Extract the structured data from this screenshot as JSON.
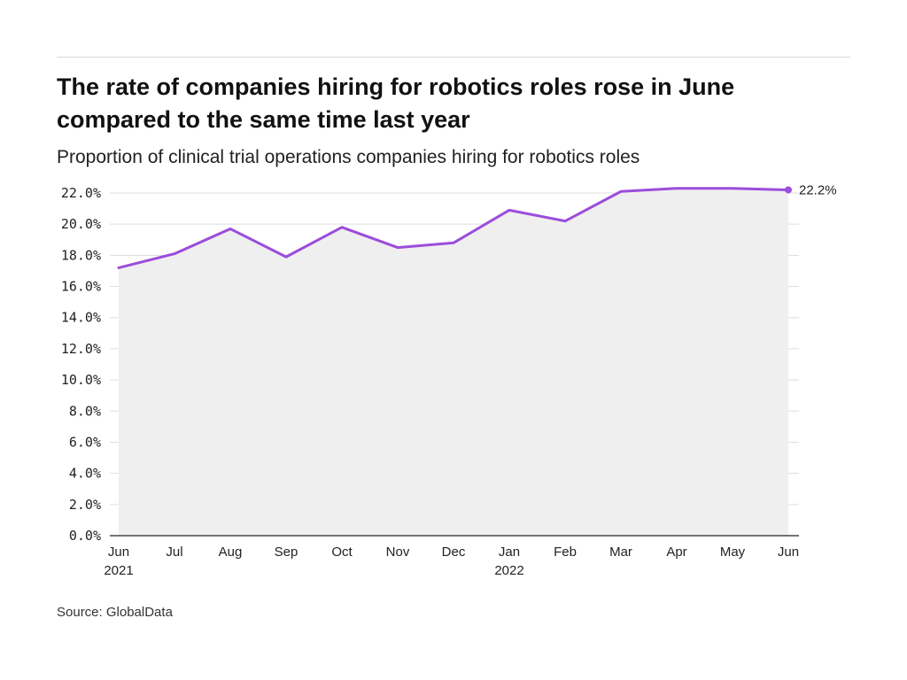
{
  "header": {
    "title": "The rate of companies hiring for robotics roles rose in June compared to the same time last year",
    "subtitle": "Proportion of clinical trial operations companies hiring for robotics roles"
  },
  "footer": {
    "source": "Source: GlobalData"
  },
  "colors": {
    "line": "#9b4ddb",
    "area": "#efefef",
    "grid": "#dddddd",
    "axis": "#222222"
  },
  "chart_data": {
    "type": "area",
    "title": "The rate of companies hiring for robotics roles rose in June compared to the same time last year",
    "subtitle": "Proportion of clinical trial operations companies hiring for robotics roles",
    "categories": [
      [
        "Jun",
        "2021"
      ],
      [
        "Jul",
        ""
      ],
      [
        "Aug",
        ""
      ],
      [
        "Sep",
        ""
      ],
      [
        "Oct",
        ""
      ],
      [
        "Nov",
        ""
      ],
      [
        "Dec",
        ""
      ],
      [
        "Jan",
        "2022"
      ],
      [
        "Feb",
        ""
      ],
      [
        "Mar",
        ""
      ],
      [
        "Apr",
        ""
      ],
      [
        "May",
        ""
      ],
      [
        "Jun",
        ""
      ]
    ],
    "series": [
      {
        "values": [
          17.2,
          18.1,
          19.7,
          17.9,
          19.8,
          18.5,
          18.8,
          20.9,
          20.2,
          22.1,
          22.3,
          22.3,
          22.2
        ]
      }
    ],
    "end_label": "22.2%",
    "yticks": [
      "0.0%",
      "2.0%",
      "4.0%",
      "6.0%",
      "8.0%",
      "10.0%",
      "12.0%",
      "14.0%",
      "16.0%",
      "18.0%",
      "20.0%",
      "22.0%"
    ],
    "ylim": [
      0,
      22
    ],
    "grid": true,
    "xlabel": "",
    "ylabel": ""
  }
}
